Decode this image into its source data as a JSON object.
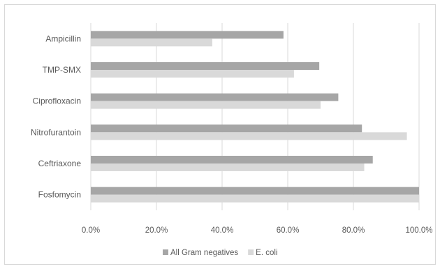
{
  "chart_data": {
    "type": "bar",
    "orientation": "horizontal",
    "categories": [
      "Ampicillin",
      "TMP-SMX",
      "Ciprofloxacin",
      "Nitrofurantoin",
      "Ceftriaxone",
      "Fosfomycin"
    ],
    "series": [
      {
        "name": "All Gram negatives",
        "color": "#a6a6a6",
        "values": [
          58.7,
          69.6,
          75.4,
          82.6,
          85.9,
          100.0
        ]
      },
      {
        "name": "E. coli",
        "color": "#d9d9d9",
        "values": [
          37.0,
          61.9,
          70.0,
          96.3,
          83.3,
          100.0
        ]
      }
    ],
    "xlim": [
      0,
      100
    ],
    "x_ticks": [
      0,
      20,
      40,
      60,
      80,
      100
    ],
    "x_tick_labels": [
      "0.0%",
      "20.0%",
      "40.0%",
      "60.0%",
      "80.0%",
      "100.0%"
    ],
    "grid": true,
    "legend_position": "bottom",
    "title": "",
    "xlabel": "",
    "ylabel": ""
  }
}
